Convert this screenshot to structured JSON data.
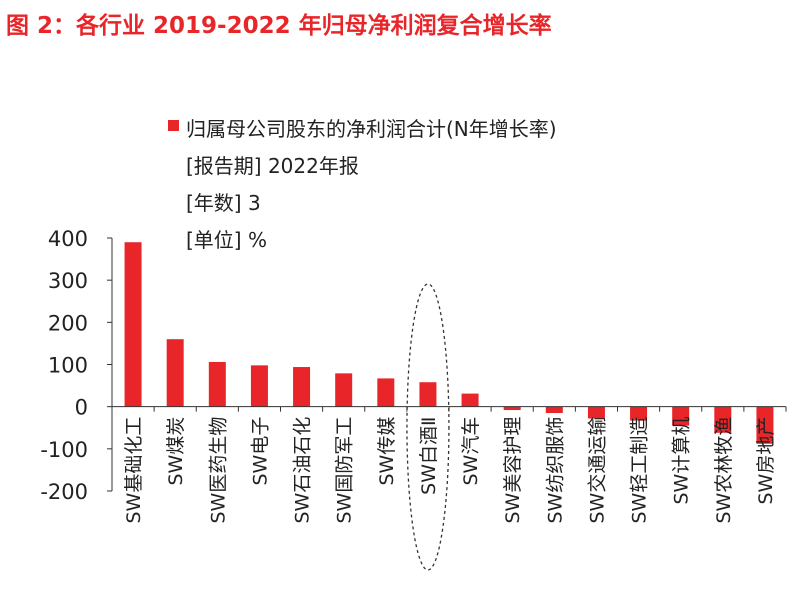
{
  "figure_title": "图 2：各行业 2019-2022 年归母净利润复合增长率",
  "chart_data": {
    "type": "bar",
    "title": "",
    "xlabel": "",
    "ylabel": "",
    "ylim": [
      -200,
      400
    ],
    "yticks": [
      400,
      300,
      200,
      100,
      0,
      -100,
      -200
    ],
    "grid": false,
    "legend_position": "top-right",
    "colors": {
      "bar": "#e8262a",
      "title": "#e8262a",
      "axis": "#333333",
      "highlight": "#333333"
    },
    "legend": [
      "归属母公司股东的净利润合计(N年增长率)",
      "[报告期] 2022年报",
      "[年数] 3",
      "[单位] %"
    ],
    "highlighted_category": "SW白酒Ⅱ",
    "categories": [
      "SW基础化工",
      "SW煤炭",
      "SW医药生物",
      "SW电子",
      "SW石油石化",
      "SW国防军工",
      "SW传媒",
      "SW白酒Ⅱ",
      "SW汽车",
      "SW美容护理",
      "SW纺织服饰",
      "SW交通运输",
      "SW轻工制造",
      "SW计算机",
      "SW农林牧渔",
      "SW房地产"
    ],
    "series": [
      {
        "values": [
          390,
          160,
          106,
          98,
          94,
          79,
          67,
          58,
          31,
          -8,
          -15,
          -28,
          -33,
          -45,
          -62,
          -88
        ]
      }
    ]
  }
}
